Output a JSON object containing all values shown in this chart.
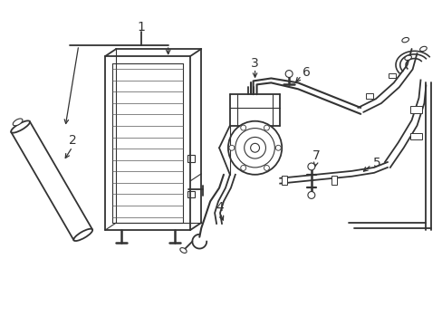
{
  "background_color": "#ffffff",
  "line_color": "#333333",
  "lw_main": 1.3,
  "lw_thin": 0.8,
  "lw_hose": 1.5,
  "fig_width": 4.89,
  "fig_height": 3.6,
  "dpi": 100
}
